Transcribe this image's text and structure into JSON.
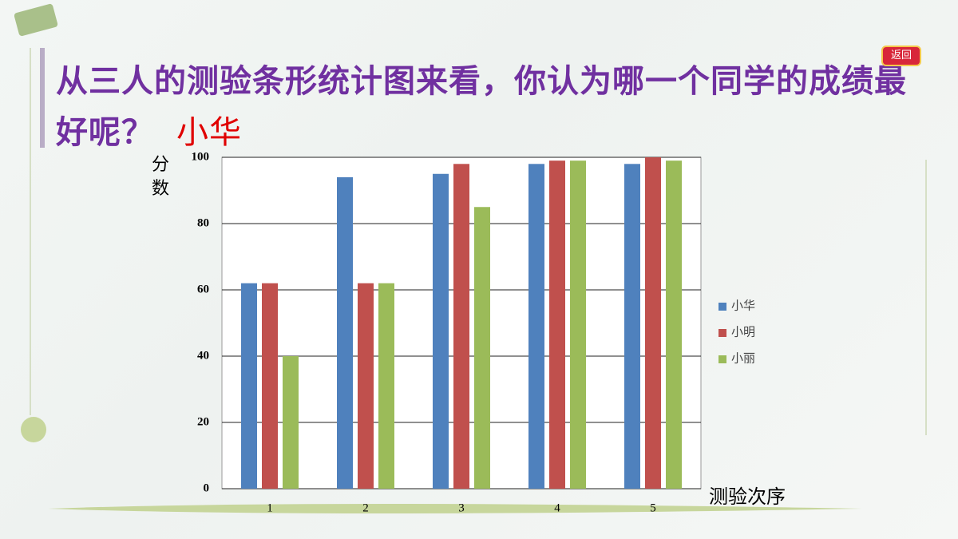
{
  "header": {
    "question": "从三人的测验条形统计图来看，你认为哪一个同学的成绩最好呢？",
    "answer": "小华",
    "button": "返回"
  },
  "chart_data": {
    "type": "bar",
    "categories": [
      "1",
      "2",
      "3",
      "4",
      "5"
    ],
    "series": [
      {
        "name": "小华",
        "color": "#4f81bd",
        "values": [
          62,
          94,
          95,
          98,
          98
        ]
      },
      {
        "name": "小明",
        "color": "#c0504d",
        "values": [
          62,
          62,
          98,
          99,
          100
        ]
      },
      {
        "name": "小丽",
        "color": "#9bbb59",
        "values": [
          40,
          62,
          85,
          99,
          99
        ]
      }
    ],
    "ylabel": "分数",
    "xlabel": "测验次序",
    "ylim": [
      0,
      100
    ],
    "yticks": [
      0,
      20,
      40,
      60,
      80,
      100
    ],
    "grid": true,
    "legend": "right"
  }
}
